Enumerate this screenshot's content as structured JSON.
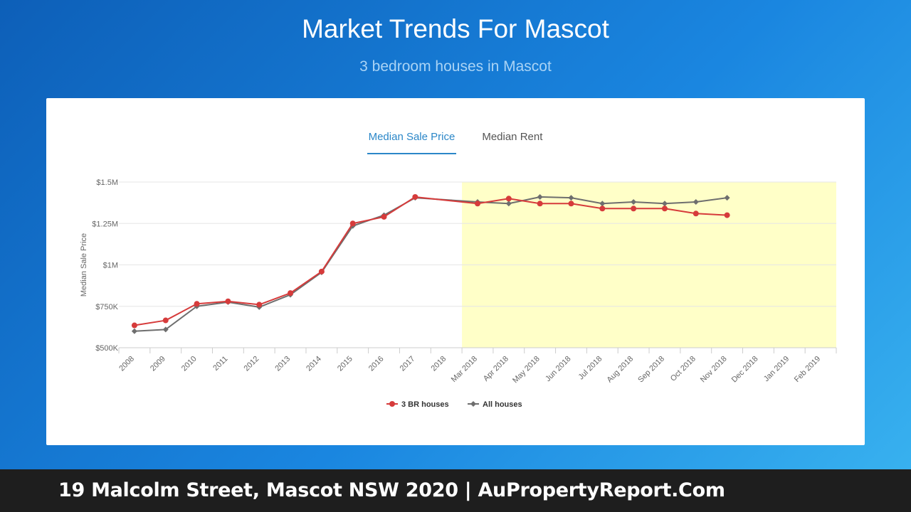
{
  "page": {
    "title": "Market Trends For Mascot",
    "subtitle": "3 bedroom houses in Mascot"
  },
  "tabs": [
    {
      "label": "Median Sale Price",
      "active": true
    },
    {
      "label": "Median Rent",
      "active": false
    }
  ],
  "footer": {
    "text": "19 Malcolm Street, Mascot NSW 2020 | AuPropertyReport.Com"
  },
  "colors": {
    "series_3br": "#d63b3b",
    "series_all": "#6e6e6e",
    "highlight_band": "#ffffc8",
    "accent": "#2b87c8"
  },
  "chart_data": {
    "type": "line",
    "title": "",
    "xlabel": "",
    "ylabel": "Median Sale Price",
    "categories": [
      "2008",
      "2009",
      "2010",
      "2011",
      "2012",
      "2013",
      "2014",
      "2015",
      "2016",
      "2017",
      "2018",
      "Mar 2018",
      "Apr 2018",
      "May 2018",
      "Jun 2018",
      "Jul 2018",
      "Aug 2018",
      "Sep 2018",
      "Oct 2018",
      "Nov 2018",
      "Dec 2018",
      "Jan 2019",
      "Feb 2019"
    ],
    "yticks": [
      {
        "value": 500000,
        "label": "$500K"
      },
      {
        "value": 750000,
        "label": "$750K"
      },
      {
        "value": 1000000,
        "label": "$1M"
      },
      {
        "value": 1250000,
        "label": "$1.25M"
      },
      {
        "value": 1500000,
        "label": "$1.5M"
      }
    ],
    "ylim": [
      500000,
      1500000
    ],
    "grid": true,
    "legend": "bottom-center",
    "highlight_range": [
      "Mar 2018",
      "Feb 2019"
    ],
    "series": [
      {
        "name": "3 BR houses",
        "marker": "circle",
        "values": [
          635000,
          665000,
          765000,
          780000,
          760000,
          830000,
          960000,
          1250000,
          1290000,
          1410000,
          null,
          1370000,
          1400000,
          1370000,
          1370000,
          1340000,
          1340000,
          1340000,
          1310000,
          1300000,
          null,
          null,
          null
        ]
      },
      {
        "name": "All houses",
        "marker": "diamond",
        "values": [
          600000,
          610000,
          750000,
          775000,
          745000,
          820000,
          955000,
          1235000,
          1300000,
          1405000,
          null,
          1380000,
          1370000,
          1410000,
          1405000,
          1370000,
          1380000,
          1370000,
          1380000,
          1405000,
          null,
          null,
          null
        ]
      }
    ]
  }
}
